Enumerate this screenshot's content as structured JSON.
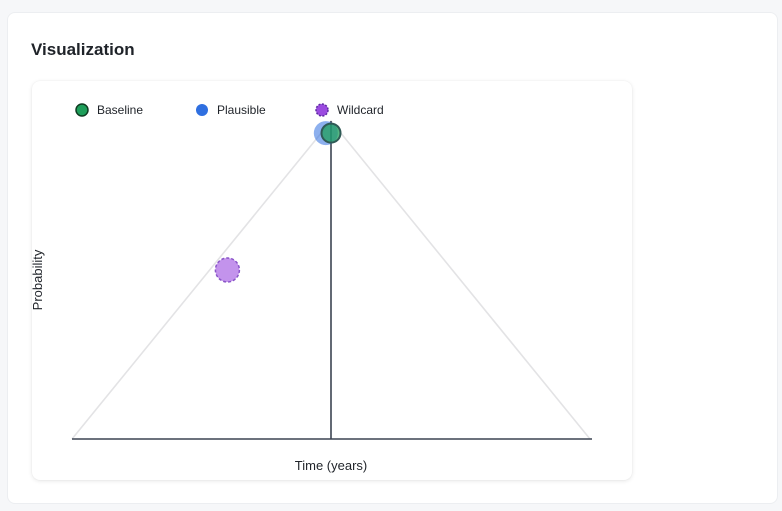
{
  "panel": {
    "title": "Visualization"
  },
  "chart_data": {
    "type": "scatter",
    "title": "",
    "xlabel": "Time (years)",
    "ylabel": "Probability",
    "xlim": [
      0,
      1
    ],
    "ylim": [
      0,
      1
    ],
    "legend_position": "top-left",
    "grid": false,
    "series": [
      {
        "name": "Baseline",
        "color": "#1e9e5a",
        "marker": "circle",
        "x": 0.5,
        "y": 0.905
      },
      {
        "name": "Plausible",
        "color": "#2f6fe0",
        "marker": "circle",
        "x": 0.49,
        "y": 0.905
      },
      {
        "name": "Wildcard",
        "color": "#9b4be0",
        "marker": "dashed-circle",
        "x": 0.3,
        "y": 0.5
      }
    ]
  }
}
